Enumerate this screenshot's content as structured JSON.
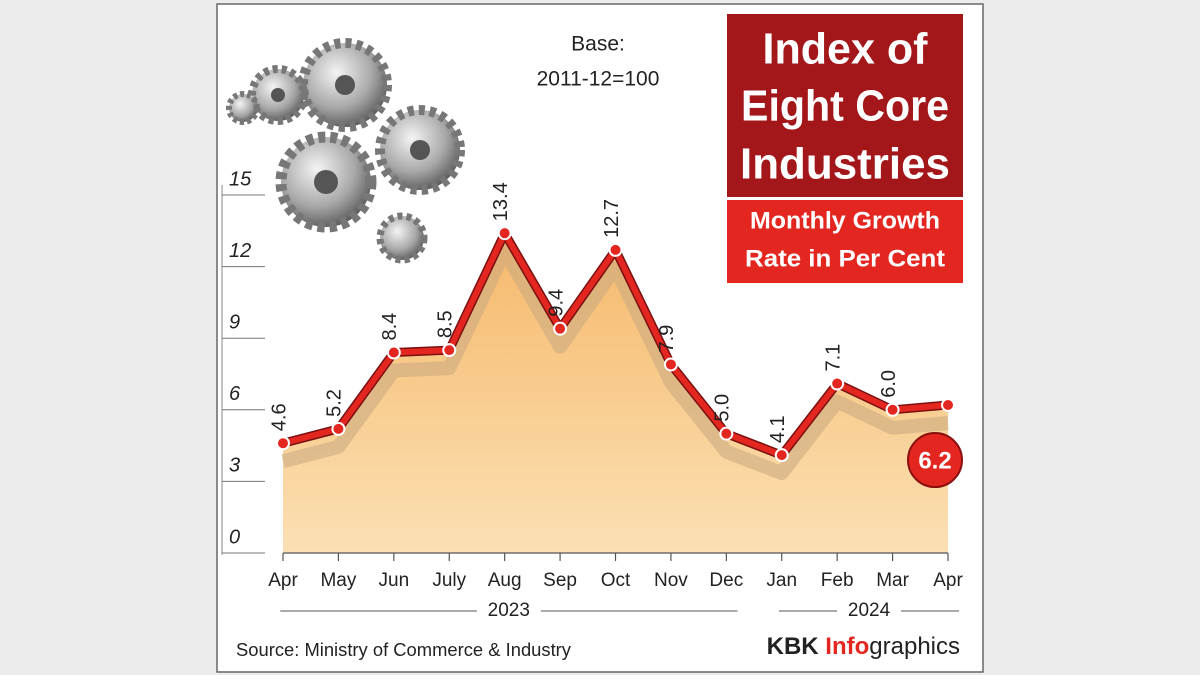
{
  "chart_data": {
    "type": "line",
    "title": [
      "Index of",
      "Eight Core",
      "Industries"
    ],
    "subtitle": [
      "Monthly Growth",
      "Rate in Per Cent"
    ],
    "base_note": [
      "Base:",
      "2011-12=100"
    ],
    "categories": [
      "Apr",
      "May",
      "Jun",
      "July",
      "Aug",
      "Sep",
      "Oct",
      "Nov",
      "Dec",
      "Jan",
      "Feb",
      "Mar",
      "Apr"
    ],
    "years": [
      "2023",
      "2024"
    ],
    "series": [
      {
        "name": "Monthly growth rate",
        "color": "#e3261f",
        "area_color": "#f8c785",
        "values": [
          4.6,
          5.2,
          8.4,
          8.5,
          13.4,
          9.4,
          12.7,
          7.9,
          5.0,
          4.1,
          7.1,
          6.0,
          6.2
        ],
        "value_labels": [
          "4.6",
          "5.2",
          "8.4",
          "8.5",
          "13.4",
          "9.4",
          "12.7",
          "7.9",
          "5.0",
          "4.1",
          "7.1",
          "6.0",
          "6.2"
        ]
      }
    ],
    "ylim": [
      0,
      15
    ],
    "yticks": [
      0,
      3,
      6,
      9,
      12,
      15
    ],
    "grid": false,
    "source": "Source: Ministry of Commerce & Industry",
    "credit": {
      "prefix": "KBK",
      "highlight": "Info",
      "suffix": "graphics"
    }
  }
}
